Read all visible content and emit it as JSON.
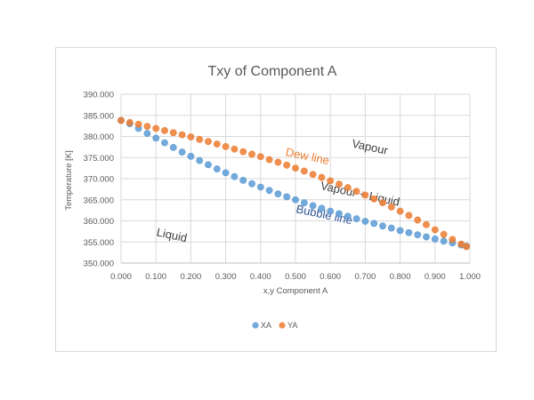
{
  "chart_data": {
    "type": "scatter",
    "title": "Txy of Component A",
    "xlabel": "x,y Component A",
    "ylabel": "Temperature [K]",
    "xlim": [
      0,
      1
    ],
    "ylim": [
      350,
      390
    ],
    "x_ticks": [
      "0.000",
      "0.100",
      "0.200",
      "0.300",
      "0.400",
      "0.500",
      "0.600",
      "0.700",
      "0.800",
      "0.900",
      "1.000"
    ],
    "y_ticks": [
      "350.000",
      "355.000",
      "360.000",
      "365.000",
      "370.000",
      "375.000",
      "380.000",
      "385.000",
      "390.000"
    ],
    "grid": true,
    "legend_position": "bottom",
    "series": [
      {
        "name": "XA",
        "color": "#5b9bd5",
        "points": [
          [
            0.0,
            383.8
          ],
          [
            0.025,
            383.0
          ],
          [
            0.05,
            381.9
          ],
          [
            0.075,
            380.7
          ],
          [
            0.1,
            379.6
          ],
          [
            0.125,
            378.5
          ],
          [
            0.15,
            377.4
          ],
          [
            0.175,
            376.3
          ],
          [
            0.2,
            375.3
          ],
          [
            0.225,
            374.3
          ],
          [
            0.25,
            373.3
          ],
          [
            0.275,
            372.3
          ],
          [
            0.3,
            371.4
          ],
          [
            0.325,
            370.5
          ],
          [
            0.35,
            369.6
          ],
          [
            0.375,
            368.8
          ],
          [
            0.4,
            368.0
          ],
          [
            0.425,
            367.2
          ],
          [
            0.45,
            366.4
          ],
          [
            0.475,
            365.7
          ],
          [
            0.5,
            365.0
          ],
          [
            0.525,
            364.3
          ],
          [
            0.55,
            363.6
          ],
          [
            0.575,
            363.0
          ],
          [
            0.6,
            362.3
          ],
          [
            0.625,
            361.7
          ],
          [
            0.65,
            361.1
          ],
          [
            0.675,
            360.5
          ],
          [
            0.7,
            359.9
          ],
          [
            0.725,
            359.4
          ],
          [
            0.75,
            358.8
          ],
          [
            0.775,
            358.3
          ],
          [
            0.8,
            357.7
          ],
          [
            0.825,
            357.2
          ],
          [
            0.85,
            356.7
          ],
          [
            0.875,
            356.2
          ],
          [
            0.9,
            355.7
          ],
          [
            0.925,
            355.2
          ],
          [
            0.95,
            354.8
          ],
          [
            0.975,
            354.3
          ],
          [
            0.99,
            354.0
          ]
        ]
      },
      {
        "name": "YA",
        "color": "#ed7d31",
        "points": [
          [
            0.0,
            383.8
          ],
          [
            0.025,
            383.3
          ],
          [
            0.05,
            382.9
          ],
          [
            0.075,
            382.4
          ],
          [
            0.1,
            381.9
          ],
          [
            0.125,
            381.4
          ],
          [
            0.15,
            380.9
          ],
          [
            0.175,
            380.4
          ],
          [
            0.2,
            379.9
          ],
          [
            0.225,
            379.3
          ],
          [
            0.25,
            378.8
          ],
          [
            0.275,
            378.2
          ],
          [
            0.3,
            377.6
          ],
          [
            0.325,
            377.0
          ],
          [
            0.35,
            376.4
          ],
          [
            0.375,
            375.8
          ],
          [
            0.4,
            375.2
          ],
          [
            0.425,
            374.5
          ],
          [
            0.45,
            373.9
          ],
          [
            0.475,
            373.2
          ],
          [
            0.5,
            372.5
          ],
          [
            0.525,
            371.8
          ],
          [
            0.55,
            371.0
          ],
          [
            0.575,
            370.3
          ],
          [
            0.6,
            369.5
          ],
          [
            0.625,
            368.7
          ],
          [
            0.65,
            367.9
          ],
          [
            0.675,
            367.0
          ],
          [
            0.7,
            366.1
          ],
          [
            0.725,
            365.2
          ],
          [
            0.75,
            364.3
          ],
          [
            0.775,
            363.3
          ],
          [
            0.8,
            362.3
          ],
          [
            0.825,
            361.3
          ],
          [
            0.85,
            360.2
          ],
          [
            0.875,
            359.1
          ],
          [
            0.9,
            357.9
          ],
          [
            0.925,
            356.8
          ],
          [
            0.95,
            355.6
          ],
          [
            0.975,
            354.5
          ],
          [
            0.99,
            353.9
          ]
        ]
      }
    ],
    "annotations": [
      {
        "text": "Vapour",
        "color": "#404040",
        "x": 0.66,
        "y": 377.5
      },
      {
        "text": "Dew line",
        "color": "#ed7d31",
        "x": 0.47,
        "y": 375.5
      },
      {
        "text": "Vapour + Liquid",
        "color": "#404040",
        "x": 0.57,
        "y": 367.5
      },
      {
        "text": "Bubble line",
        "color": "#2f5597",
        "x": 0.5,
        "y": 362.0
      },
      {
        "text": "Liquid",
        "color": "#404040",
        "x": 0.1,
        "y": 356.5
      }
    ]
  }
}
